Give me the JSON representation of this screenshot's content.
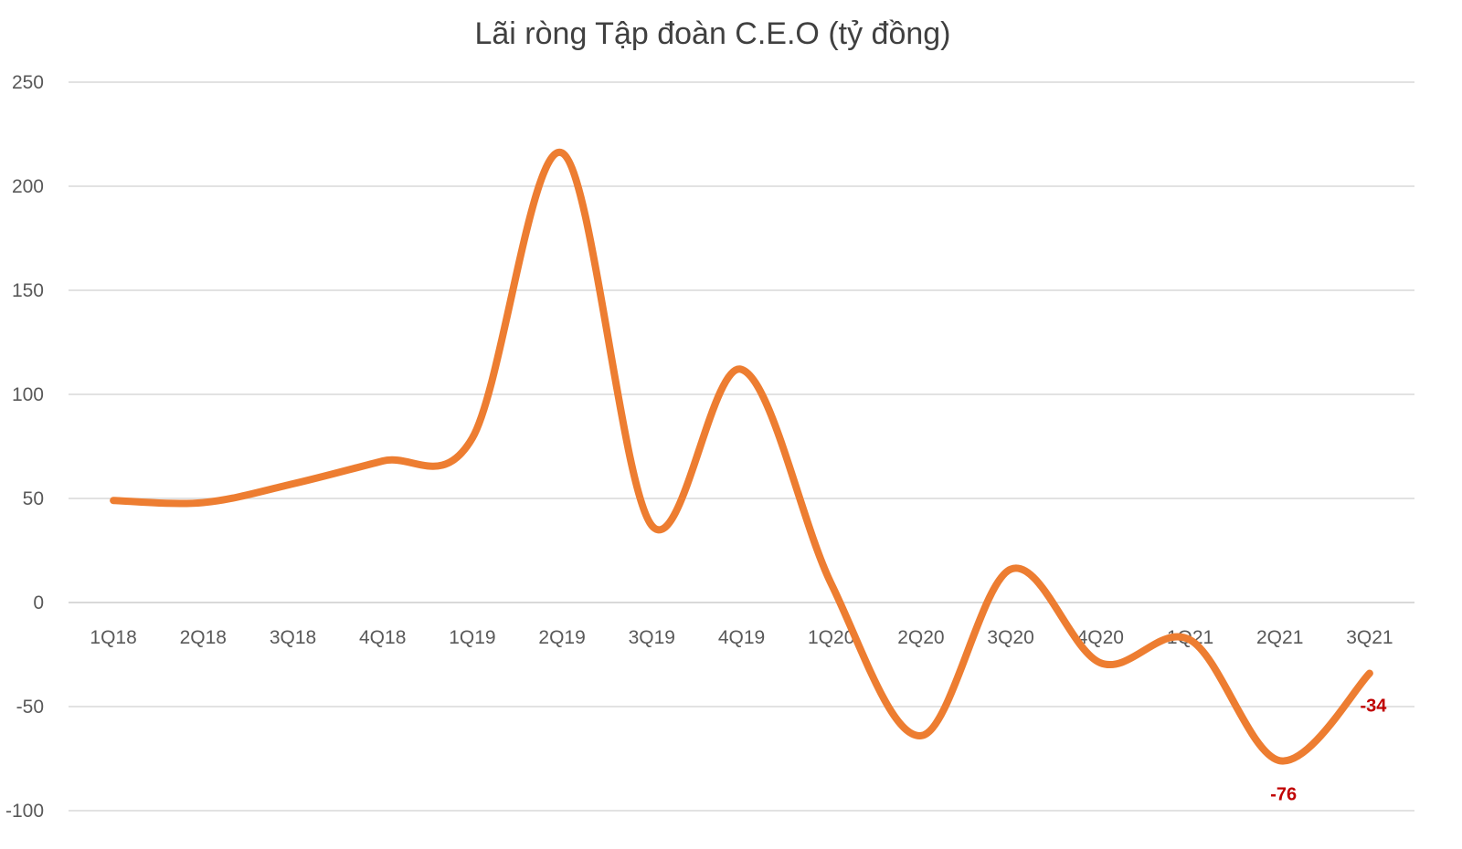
{
  "chart_data": {
    "type": "line",
    "title": "Lãi ròng Tập đoàn C.E.O (tỷ đồng)",
    "xlabel": "",
    "ylabel": "",
    "categories": [
      "1Q18",
      "2Q18",
      "3Q18",
      "4Q18",
      "1Q19",
      "2Q19",
      "3Q19",
      "4Q19",
      "1Q20",
      "2Q20",
      "3Q20",
      "4Q20",
      "1Q21",
      "2Q21",
      "3Q21"
    ],
    "series": [
      {
        "name": "Lãi ròng",
        "color": "#ed7d31",
        "values": [
          49,
          48,
          57,
          68,
          79,
          216,
          37,
          112,
          9,
          -64,
          16,
          -29,
          -18,
          -76,
          -34
        ]
      }
    ],
    "ylim": [
      -100,
      250
    ],
    "yticks": [
      250,
      200,
      150,
      100,
      50,
      0,
      -50,
      -100
    ],
    "grid": true,
    "smooth": true,
    "data_labels": [
      {
        "category": "2Q21",
        "text": "-76"
      },
      {
        "category": "3Q21",
        "text": "-34"
      }
    ]
  }
}
